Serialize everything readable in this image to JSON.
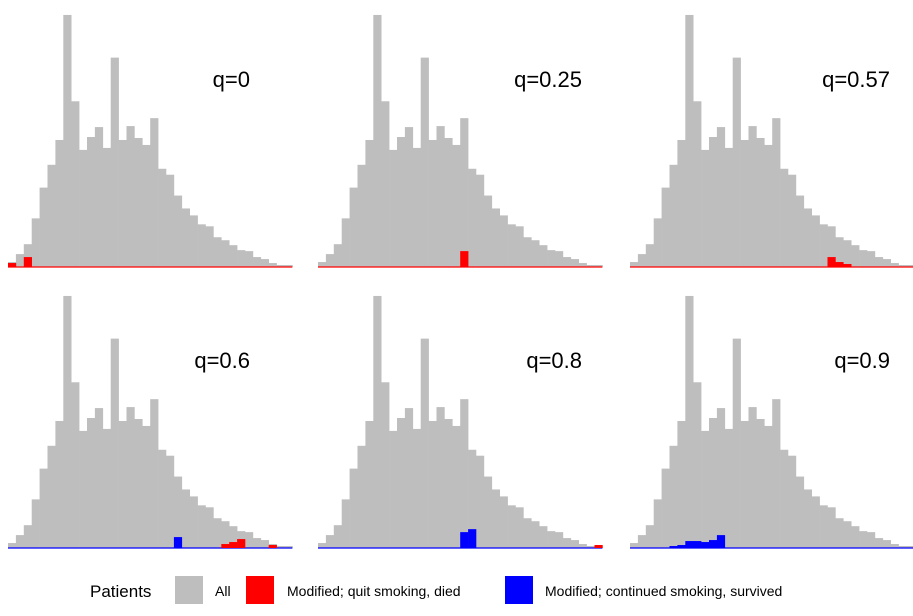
{
  "chart_data": {
    "type": "bar",
    "bins": [
      "1",
      "2",
      "3",
      "4",
      "5",
      "6",
      "7",
      "8",
      "9",
      "10",
      "11",
      "12",
      "13",
      "14",
      "15",
      "16",
      "17",
      "18",
      "19",
      "20",
      "21",
      "22",
      "23",
      "24",
      "25",
      "26",
      "27",
      "28",
      "29",
      "30",
      "31",
      "32",
      "33",
      "34",
      "35",
      "36"
    ],
    "all_counts": [
      5,
      13,
      23,
      49,
      80,
      103,
      128,
      254,
      167,
      118,
      131,
      141,
      120,
      211,
      128,
      142,
      130,
      123,
      150,
      99,
      93,
      72,
      59,
      52,
      43,
      41,
      30,
      27,
      22,
      17,
      16,
      10,
      8,
      4,
      2,
      2
    ],
    "ylim": [
      0,
      260
    ],
    "colors": {
      "all": "#bebebe",
      "died": "#ff0000",
      "survived": "#0000ff"
    },
    "panels": [
      {
        "label": "q=0",
        "died": [
          4,
          0,
          10,
          0,
          0,
          0,
          0,
          0,
          0,
          0,
          0,
          0,
          0,
          0,
          0,
          0,
          0,
          0,
          0,
          0,
          0,
          0,
          0,
          0,
          0,
          0,
          0,
          0,
          0,
          0,
          0,
          0,
          0,
          0,
          0,
          0
        ],
        "survived": [
          0,
          0,
          0,
          0,
          0,
          0,
          0,
          0,
          0,
          0,
          0,
          0,
          0,
          0,
          0,
          0,
          0,
          0,
          0,
          0,
          0,
          0,
          0,
          0,
          0,
          0,
          0,
          0,
          0,
          0,
          0,
          0,
          0,
          0,
          0,
          0
        ]
      },
      {
        "label": "q=0.25",
        "died": [
          0,
          0,
          0,
          0,
          0,
          0,
          0,
          0,
          0,
          0,
          0,
          0,
          0,
          0,
          0,
          0,
          0,
          0,
          16,
          0,
          0,
          0,
          0,
          0,
          0,
          0,
          0,
          0,
          0,
          0,
          0,
          0,
          0,
          0,
          0,
          0
        ],
        "survived": [
          0,
          0,
          0,
          0,
          0,
          0,
          0,
          0,
          0,
          0,
          0,
          0,
          0,
          0,
          0,
          0,
          0,
          0,
          0,
          0,
          0,
          0,
          0,
          0,
          0,
          0,
          0,
          0,
          0,
          0,
          0,
          0,
          0,
          0,
          0,
          0
        ]
      },
      {
        "label": "q=0.57",
        "died": [
          0,
          0,
          0,
          0,
          0,
          0,
          0,
          0,
          0,
          0,
          0,
          0,
          0,
          0,
          0,
          0,
          0,
          0,
          0,
          0,
          0,
          0,
          0,
          0,
          0,
          10,
          5,
          3,
          0,
          0,
          0,
          0,
          0,
          0,
          0,
          0
        ],
        "survived": [
          0,
          0,
          0,
          0,
          0,
          0,
          0,
          0,
          0,
          0,
          0,
          0,
          0,
          0,
          0,
          0,
          0,
          0,
          0,
          0,
          0,
          0,
          0,
          0,
          0,
          0,
          0,
          0,
          0,
          0,
          0,
          0,
          0,
          0,
          0,
          0
        ]
      },
      {
        "label": "q=0.6",
        "died": [
          0,
          0,
          0,
          0,
          0,
          0,
          0,
          0,
          0,
          0,
          0,
          0,
          0,
          0,
          0,
          0,
          0,
          0,
          0,
          0,
          0,
          0,
          0,
          0,
          0,
          0,
          0,
          4,
          6,
          9,
          0,
          0,
          0,
          3,
          0,
          0
        ],
        "survived": [
          0,
          0,
          0,
          0,
          0,
          0,
          0,
          0,
          0,
          0,
          0,
          0,
          0,
          0,
          0,
          0,
          0,
          0,
          0,
          0,
          0,
          11,
          0,
          0,
          0,
          0,
          0,
          0,
          0,
          0,
          0,
          0,
          0,
          0,
          0,
          0
        ]
      },
      {
        "label": "q=0.8",
        "died": [
          0,
          0,
          0,
          0,
          0,
          0,
          0,
          0,
          0,
          0,
          0,
          0,
          0,
          0,
          0,
          0,
          0,
          0,
          0,
          0,
          0,
          0,
          0,
          0,
          0,
          0,
          0,
          0,
          0,
          0,
          0,
          0,
          0,
          0,
          0,
          3
        ],
        "survived": [
          0,
          0,
          0,
          0,
          0,
          0,
          0,
          0,
          0,
          0,
          0,
          0,
          0,
          0,
          0,
          0,
          0,
          0,
          16,
          19,
          0,
          0,
          0,
          0,
          0,
          0,
          0,
          0,
          0,
          0,
          0,
          0,
          0,
          0,
          0,
          0
        ]
      },
      {
        "label": "q=0.9",
        "died": [
          0,
          0,
          0,
          0,
          0,
          0,
          0,
          0,
          0,
          0,
          0,
          0,
          0,
          0,
          0,
          0,
          0,
          0,
          0,
          0,
          0,
          0,
          0,
          0,
          0,
          0,
          0,
          0,
          0,
          0,
          0,
          0,
          0,
          0,
          0,
          0
        ],
        "survived": [
          0,
          0,
          0,
          0,
          0,
          2,
          3,
          7,
          7,
          6,
          8,
          13,
          0,
          0,
          0,
          0,
          0,
          0,
          0,
          0,
          0,
          0,
          0,
          0,
          0,
          0,
          0,
          0,
          0,
          0,
          0,
          0,
          0,
          0,
          0,
          0
        ]
      }
    ],
    "legend": {
      "title": "Patients",
      "items": [
        {
          "label": "All",
          "color": "#bebebe"
        },
        {
          "label": "Modified; quit smoking, died",
          "color": "#ff0000"
        },
        {
          "label": "Modified; continued smoking, survived",
          "color": "#0000ff"
        }
      ],
      "placement": "bottom"
    },
    "grid": false
  }
}
